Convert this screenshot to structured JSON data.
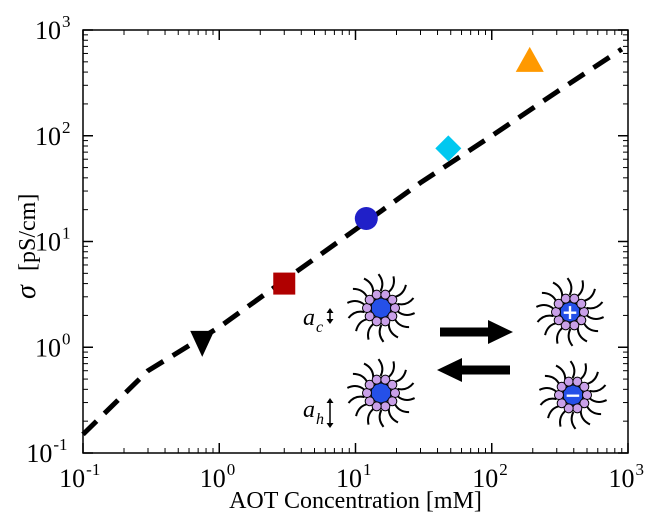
{
  "chart_data": {
    "type": "scatter",
    "xlabel": "AOT Concentration [mM]",
    "ylabel_symbol": "σ",
    "ylabel_units": "[pS/cm]",
    "x_scale": "log",
    "y_scale": "log",
    "xlim": [
      0.1,
      1000
    ],
    "ylim": [
      0.1,
      1000
    ],
    "x_ticks": [
      {
        "base": "10",
        "exp": "-1",
        "value": 0.1
      },
      {
        "base": "10",
        "exp": "0",
        "value": 1
      },
      {
        "base": "10",
        "exp": "1",
        "value": 10
      },
      {
        "base": "10",
        "exp": "2",
        "value": 100
      },
      {
        "base": "10",
        "exp": "3",
        "value": 1000
      }
    ],
    "y_ticks": [
      {
        "base": "10",
        "exp": "-1",
        "value": 0.1
      },
      {
        "base": "10",
        "exp": "0",
        "value": 1
      },
      {
        "base": "10",
        "exp": "1",
        "value": 10
      },
      {
        "base": "10",
        "exp": "2",
        "value": 100
      },
      {
        "base": "10",
        "exp": "3",
        "value": 1000
      }
    ],
    "grid": false,
    "points": [
      {
        "marker": "triangle-down",
        "color": "#000000",
        "x": 0.75,
        "y": 1.1
      },
      {
        "marker": "square",
        "color": "#b00000",
        "x": 3.0,
        "y": 4.0
      },
      {
        "marker": "circle",
        "color": "#2020c8",
        "x": 12.0,
        "y": 16.5
      },
      {
        "marker": "diamond",
        "color": "#00c8f0",
        "x": 48.0,
        "y": 76.0
      },
      {
        "marker": "triangle-up",
        "color": "#ff9900",
        "x": 190.0,
        "y": 510.0
      }
    ],
    "fit_line": {
      "style": "dashed",
      "color": "#000000",
      "x": [
        0.1,
        0.3,
        1,
        3,
        10,
        30,
        100,
        300,
        900
      ],
      "y": [
        0.15,
        0.6,
        1.55,
        4.3,
        13.0,
        36.0,
        100.0,
        260.0,
        660.0
      ]
    },
    "inset": {
      "labels": [
        {
          "base": "a",
          "sub": "c"
        },
        {
          "base": "a",
          "sub": "h"
        }
      ],
      "charge_signs": [
        "+",
        "−"
      ],
      "micelle_core_color": "#2550e8",
      "headgroup_color": "#c9a0e8"
    }
  }
}
